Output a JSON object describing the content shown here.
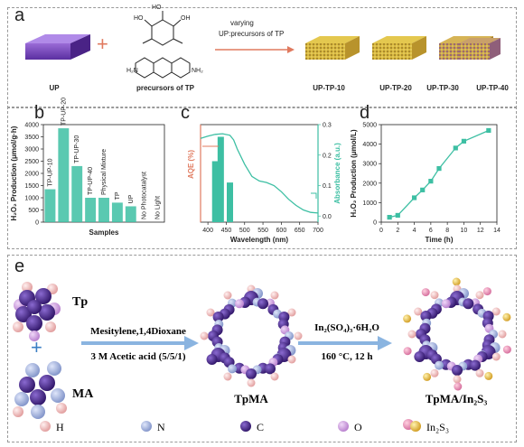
{
  "panel_a": {
    "label": "a",
    "arrow_text_1": "varying",
    "arrow_text_2": "UP:precursors of TP",
    "reactant1": "UP",
    "reactant2": "precursors of TP",
    "nh2_left": "H₂N",
    "nh2_right": "NH₂",
    "products": [
      "UP-TP-10",
      "UP-TP-20",
      "UP-TP-30",
      "UP-TP-40"
    ]
  },
  "panel_b": {
    "label": "b"
  },
  "panel_c": {
    "label": "c"
  },
  "panel_d": {
    "label": "d"
  },
  "panel_e": {
    "label": "e",
    "tp": "Tp",
    "ma": "MA",
    "plus": "+",
    "cond1_line1": "Mesitylene,1,4Dioxane",
    "cond1_line2": "3 M Acetic acid (5/5/1)",
    "cond2_line1": "In₂(SO₄)₃·6H₂O",
    "cond2_line2": "160 °C,  12 h",
    "product1": "TpMA",
    "product2": "TpMA/In₂S₃",
    "legend": [
      {
        "label": "H",
        "color": "#f2b3b3"
      },
      {
        "label": "N",
        "color": "#9fb0de"
      },
      {
        "label": "C",
        "color": "#4a2a8c"
      },
      {
        "label": "O",
        "color": "#c79ad9"
      },
      {
        "label": "In₂S₃",
        "color": "#e8c23a"
      }
    ]
  },
  "chart_data": [
    {
      "type": "bar",
      "panel": "b",
      "title": "",
      "xlabel": "Samples",
      "ylabel": "H₂O₂ Production (μmol/g·h)",
      "ylim": [
        0,
        4000
      ],
      "yticks": [
        0,
        500,
        1000,
        1500,
        2000,
        2500,
        3000,
        3500,
        4000
      ],
      "categories": [
        "UP-TP-10",
        "UP-TP-20",
        "UP-TP-30",
        "UP-TP-40",
        "Physical Mixture",
        "TP",
        "UP",
        "No Photocatalyst",
        "No Light"
      ],
      "bar_labels": [
        "TP-UP-10",
        "TP-UP-20",
        "TP-UP-30",
        "TP-UP-40",
        "Physical Mixture",
        "TP",
        "UP",
        "No Photocatalyst",
        "No Light"
      ],
      "values": [
        1350,
        3850,
        2300,
        1000,
        1000,
        800,
        650,
        0,
        0
      ],
      "color": "#3dbfa3"
    },
    {
      "type": "bar+line",
      "panel": "c",
      "xlabel": "Wavelength (nm)",
      "ylabel_left": "AQE (%)",
      "ylabel_right": "Absorbance (a.u.)",
      "xlim": [
        380,
        700
      ],
      "xticks": [
        400,
        450,
        500,
        550,
        600,
        650,
        700
      ],
      "yticks_right": [
        0.0,
        0.1,
        0.2,
        0.3
      ],
      "ylim_right": [
        -0.02,
        0.3
      ],
      "bars": {
        "x": [
          420,
          435,
          460
        ],
        "values": [
          0.18,
          0.26,
          0.11
        ],
        "color": "#3dbfa3"
      },
      "absorbance": {
        "x": [
          380,
          400,
          420,
          440,
          460,
          470,
          480,
          500,
          520,
          540,
          560,
          580,
          600,
          620,
          640,
          660,
          680,
          700
        ],
        "y": [
          0.255,
          0.262,
          0.268,
          0.27,
          0.265,
          0.25,
          0.22,
          0.17,
          0.13,
          0.115,
          0.11,
          0.1,
          0.08,
          0.055,
          0.035,
          0.02,
          0.012,
          0.01
        ],
        "color": "#3dbfa3"
      }
    },
    {
      "type": "line",
      "panel": "d",
      "xlabel": "Time (h)",
      "ylabel": "H₂O₂ Production (μmol/L)",
      "xlim": [
        0,
        14
      ],
      "ylim": [
        0,
        5000
      ],
      "xticks": [
        0,
        2,
        4,
        6,
        8,
        10,
        12,
        14
      ],
      "yticks": [
        0,
        1000,
        2000,
        3000,
        4000,
        5000
      ],
      "x": [
        1,
        2,
        4,
        5,
        6,
        7,
        9,
        10,
        13
      ],
      "y": [
        250,
        350,
        1250,
        1650,
        2100,
        2750,
        3800,
        4150,
        4700
      ],
      "color": "#3dbfa3"
    }
  ]
}
